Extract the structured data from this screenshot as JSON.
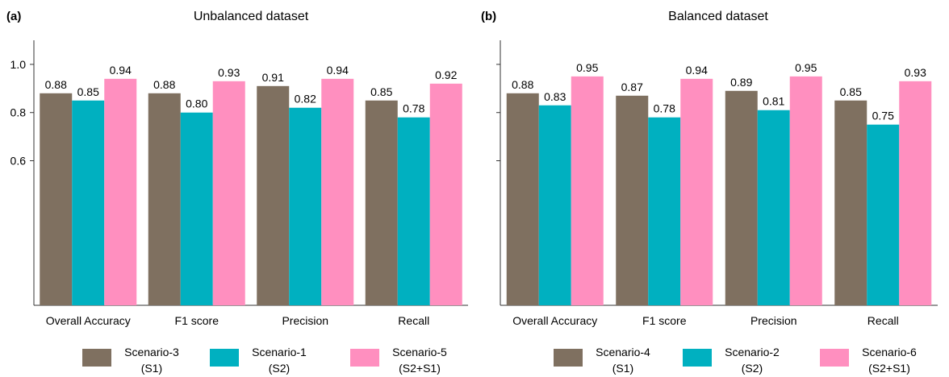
{
  "chart_data": [
    {
      "type": "bar",
      "panel": "(a)",
      "title": "Unbalanced dataset",
      "categories": [
        "Overall Accuracy",
        "F1 score",
        "Precision",
        "Recall"
      ],
      "series": [
        {
          "name": "Scenario-3 (S1)",
          "name_lines": [
            "Scenario-3",
            "(S1)"
          ],
          "color": "#7f7060",
          "values": [
            0.88,
            0.88,
            0.91,
            0.85
          ],
          "labels": [
            "0.88",
            "0.88",
            "0.91",
            "0.85"
          ]
        },
        {
          "name": "Scenario-1 (S2)",
          "name_lines": [
            "Scenario-1",
            "(S2)"
          ],
          "color": "#00b0c0",
          "values": [
            0.85,
            0.8,
            0.82,
            0.78
          ],
          "labels": [
            "0.85",
            "0.80",
            "0.82",
            "0.78"
          ]
        },
        {
          "name": "Scenario-5 (S2+S1)",
          "name_lines": [
            "Scenario-5",
            "(S2+S1)"
          ],
          "color": "#ff8fbf",
          "values": [
            0.94,
            0.93,
            0.94,
            0.92
          ],
          "labels": [
            "0.94",
            "0.93",
            "0.94",
            "0.92"
          ]
        }
      ],
      "ylim": [
        0.0,
        1.1
      ],
      "yticks": [
        0.6,
        0.8,
        1.0
      ],
      "ytick_labels": [
        "0.6",
        "0.8",
        "1.0"
      ],
      "grid": false,
      "legend": "bottom"
    },
    {
      "type": "bar",
      "panel": "(b)",
      "title": "Balanced dataset",
      "categories": [
        "Overall Accuracy",
        "F1 score",
        "Precision",
        "Recall"
      ],
      "series": [
        {
          "name": "Scenario-4 (S1)",
          "name_lines": [
            "Scenario-4",
            "(S1)"
          ],
          "color": "#7f7060",
          "values": [
            0.88,
            0.87,
            0.89,
            0.85
          ],
          "labels": [
            "0.88",
            "0.87",
            "0.89",
            "0.85"
          ]
        },
        {
          "name": "Scenario-2 (S2)",
          "name_lines": [
            "Scenario-2",
            "(S2)"
          ],
          "color": "#00b0c0",
          "values": [
            0.83,
            0.78,
            0.81,
            0.75
          ],
          "labels": [
            "0.83",
            "0.78",
            "0.81",
            "0.75"
          ]
        },
        {
          "name": "Scenario-6 (S2+S1)",
          "name_lines": [
            "Scenario-6",
            "(S2+S1)"
          ],
          "color": "#ff8fbf",
          "values": [
            0.95,
            0.94,
            0.95,
            0.93
          ],
          "labels": [
            "0.95",
            "0.94",
            "0.95",
            "0.93"
          ]
        }
      ],
      "ylim": [
        0.0,
        1.1
      ],
      "yticks": [],
      "ytick_labels": [],
      "grid": false,
      "legend": "bottom"
    }
  ]
}
